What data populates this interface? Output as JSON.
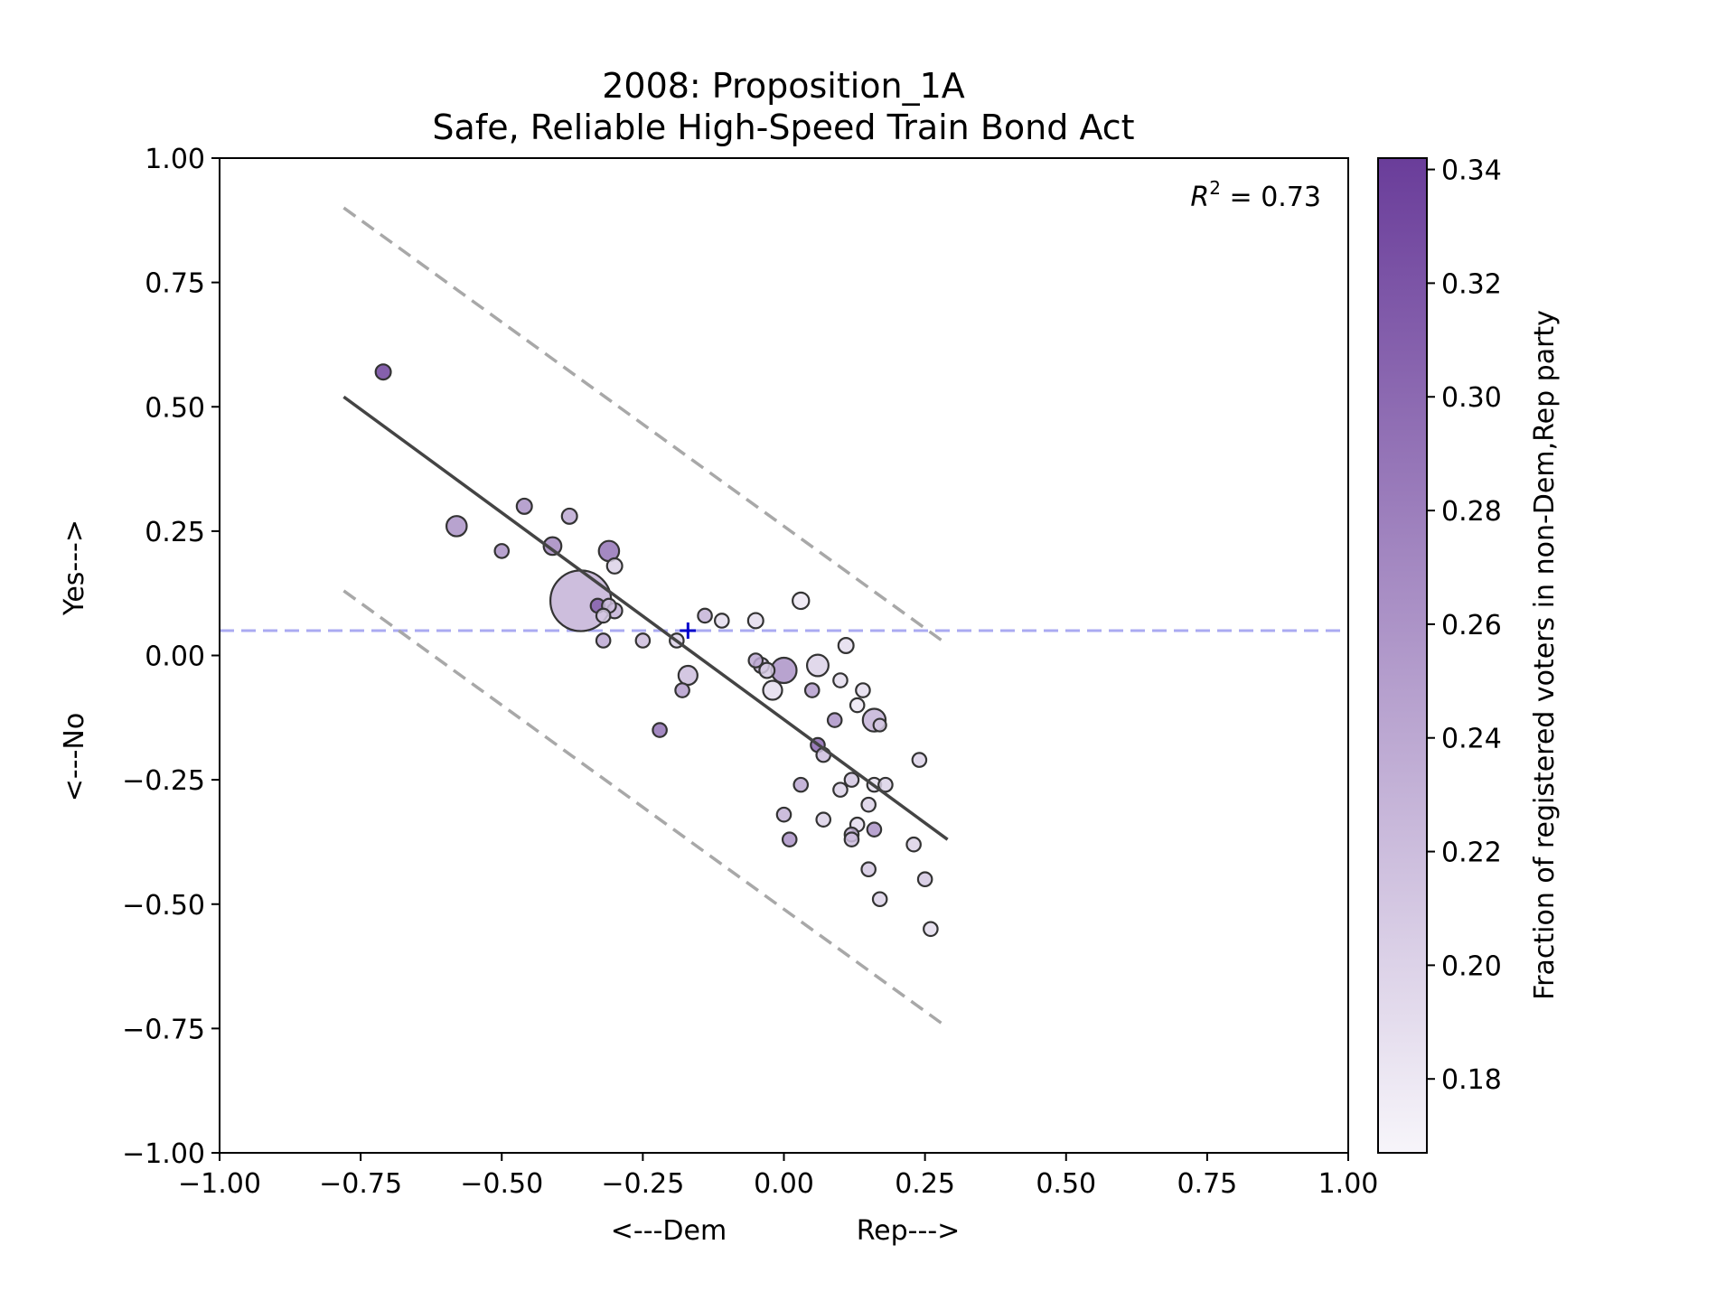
{
  "chart_data": {
    "type": "scatter",
    "title_line1": "2008: Proposition_1A",
    "title_line2": "Safe, Reliable High-Speed Train Bond Act",
    "xlabel_left": "<---Dem",
    "xlabel_right": "Rep--->",
    "ylabel_bottom": "<---No",
    "ylabel_top": "Yes--->",
    "xlim": [
      -1.0,
      1.0
    ],
    "ylim": [
      -1.0,
      1.0
    ],
    "xticks": [
      "−1.00",
      "−0.75",
      "−0.50",
      "−0.25",
      "0.00",
      "0.25",
      "0.50",
      "0.75",
      "1.00"
    ],
    "yticks": [
      "1.00",
      "0.75",
      "0.50",
      "0.25",
      "0.00",
      "−0.25",
      "−0.50",
      "−0.75",
      "−1.00"
    ],
    "annotation": "R² = 0.73",
    "colorbar": {
      "label": "Fraction of registered voters in non-Dem,Rep party",
      "range": [
        0.167,
        0.342
      ],
      "ticks": [
        "0.34",
        "0.32",
        "0.30",
        "0.28",
        "0.26",
        "0.24",
        "0.22",
        "0.20",
        "0.18"
      ],
      "color_low": "#f7f5fa",
      "color_high": "#6a3d9a"
    },
    "reference_line_y": 0.05,
    "reference_line_color": "#aaaaf2",
    "mean_marker": {
      "x": -0.17,
      "y": 0.05,
      "color": "#0000cc"
    },
    "fit_line": {
      "x": [
        -0.78,
        0.29
      ],
      "y": [
        0.52,
        -0.37
      ],
      "color": "#444444"
    },
    "band_upper": {
      "x": [
        -0.78,
        0.28
      ],
      "y": [
        0.9,
        0.03
      ]
    },
    "band_lower": {
      "x": [
        -0.78,
        0.28
      ],
      "y": [
        0.13,
        -0.74
      ]
    },
    "points": [
      {
        "x": -0.71,
        "y": 0.57,
        "s": 0.6,
        "c": 0.335
      },
      {
        "x": -0.58,
        "y": 0.26,
        "s": 0.8,
        "c": 0.26
      },
      {
        "x": -0.46,
        "y": 0.3,
        "s": 0.6,
        "c": 0.26
      },
      {
        "x": -0.5,
        "y": 0.21,
        "s": 0.55,
        "c": 0.26
      },
      {
        "x": -0.41,
        "y": 0.22,
        "s": 0.7,
        "c": 0.27
      },
      {
        "x": -0.38,
        "y": 0.28,
        "s": 0.6,
        "c": 0.24
      },
      {
        "x": -0.36,
        "y": 0.11,
        "s": 2.4,
        "c": 0.23
      },
      {
        "x": -0.31,
        "y": 0.21,
        "s": 0.8,
        "c": 0.29
      },
      {
        "x": -0.3,
        "y": 0.18,
        "s": 0.6,
        "c": 0.2
      },
      {
        "x": -0.33,
        "y": 0.1,
        "s": 0.55,
        "c": 0.31
      },
      {
        "x": -0.3,
        "y": 0.09,
        "s": 0.6,
        "c": 0.23
      },
      {
        "x": -0.31,
        "y": 0.1,
        "s": 0.55,
        "c": 0.22
      },
      {
        "x": -0.32,
        "y": 0.08,
        "s": 0.55,
        "c": 0.21
      },
      {
        "x": -0.32,
        "y": 0.03,
        "s": 0.55,
        "c": 0.24
      },
      {
        "x": -0.25,
        "y": 0.03,
        "s": 0.55,
        "c": 0.22
      },
      {
        "x": -0.19,
        "y": 0.03,
        "s": 0.55,
        "c": 0.2
      },
      {
        "x": -0.14,
        "y": 0.08,
        "s": 0.55,
        "c": 0.23
      },
      {
        "x": -0.11,
        "y": 0.07,
        "s": 0.55,
        "c": 0.19
      },
      {
        "x": -0.17,
        "y": -0.04,
        "s": 0.75,
        "c": 0.22
      },
      {
        "x": -0.18,
        "y": -0.07,
        "s": 0.55,
        "c": 0.25
      },
      {
        "x": -0.22,
        "y": -0.15,
        "s": 0.55,
        "c": 0.29
      },
      {
        "x": -0.05,
        "y": 0.07,
        "s": 0.6,
        "c": 0.19
      },
      {
        "x": 0.03,
        "y": 0.11,
        "s": 0.65,
        "c": 0.18
      },
      {
        "x": -0.05,
        "y": -0.01,
        "s": 0.55,
        "c": 0.24
      },
      {
        "x": -0.04,
        "y": -0.02,
        "s": 0.6,
        "c": 0.22
      },
      {
        "x": -0.03,
        "y": -0.03,
        "s": 0.6,
        "c": 0.21
      },
      {
        "x": 0.0,
        "y": -0.03,
        "s": 1.0,
        "c": 0.26
      },
      {
        "x": -0.02,
        "y": -0.07,
        "s": 0.75,
        "c": 0.19
      },
      {
        "x": 0.06,
        "y": -0.02,
        "s": 0.85,
        "c": 0.2
      },
      {
        "x": 0.11,
        "y": 0.02,
        "s": 0.6,
        "c": 0.19
      },
      {
        "x": 0.05,
        "y": -0.07,
        "s": 0.55,
        "c": 0.25
      },
      {
        "x": 0.1,
        "y": -0.05,
        "s": 0.55,
        "c": 0.19
      },
      {
        "x": 0.14,
        "y": -0.07,
        "s": 0.55,
        "c": 0.19
      },
      {
        "x": 0.13,
        "y": -0.1,
        "s": 0.55,
        "c": 0.18
      },
      {
        "x": 0.09,
        "y": -0.13,
        "s": 0.55,
        "c": 0.26
      },
      {
        "x": 0.16,
        "y": -0.13,
        "s": 0.9,
        "c": 0.23
      },
      {
        "x": 0.17,
        "y": -0.14,
        "s": 0.5,
        "c": 0.21
      },
      {
        "x": 0.06,
        "y": -0.18,
        "s": 0.55,
        "c": 0.3
      },
      {
        "x": 0.07,
        "y": -0.2,
        "s": 0.55,
        "c": 0.22
      },
      {
        "x": 0.24,
        "y": -0.21,
        "s": 0.55,
        "c": 0.2
      },
      {
        "x": 0.03,
        "y": -0.26,
        "s": 0.55,
        "c": 0.24
      },
      {
        "x": 0.12,
        "y": -0.25,
        "s": 0.55,
        "c": 0.21
      },
      {
        "x": 0.16,
        "y": -0.26,
        "s": 0.55,
        "c": 0.19
      },
      {
        "x": 0.18,
        "y": -0.26,
        "s": 0.55,
        "c": 0.2
      },
      {
        "x": 0.1,
        "y": -0.27,
        "s": 0.55,
        "c": 0.2
      },
      {
        "x": 0.15,
        "y": -0.3,
        "s": 0.55,
        "c": 0.2
      },
      {
        "x": 0.0,
        "y": -0.32,
        "s": 0.55,
        "c": 0.23
      },
      {
        "x": 0.07,
        "y": -0.33,
        "s": 0.55,
        "c": 0.2
      },
      {
        "x": 0.13,
        "y": -0.34,
        "s": 0.55,
        "c": 0.19
      },
      {
        "x": 0.12,
        "y": -0.36,
        "s": 0.55,
        "c": 0.23
      },
      {
        "x": 0.16,
        "y": -0.35,
        "s": 0.55,
        "c": 0.26
      },
      {
        "x": 0.01,
        "y": -0.37,
        "s": 0.55,
        "c": 0.26
      },
      {
        "x": 0.12,
        "y": -0.37,
        "s": 0.55,
        "c": 0.22
      },
      {
        "x": 0.23,
        "y": -0.38,
        "s": 0.55,
        "c": 0.2
      },
      {
        "x": 0.15,
        "y": -0.43,
        "s": 0.55,
        "c": 0.21
      },
      {
        "x": 0.25,
        "y": -0.45,
        "s": 0.55,
        "c": 0.21
      },
      {
        "x": 0.17,
        "y": -0.49,
        "s": 0.55,
        "c": 0.2
      },
      {
        "x": 0.26,
        "y": -0.55,
        "s": 0.55,
        "c": 0.19
      }
    ]
  }
}
